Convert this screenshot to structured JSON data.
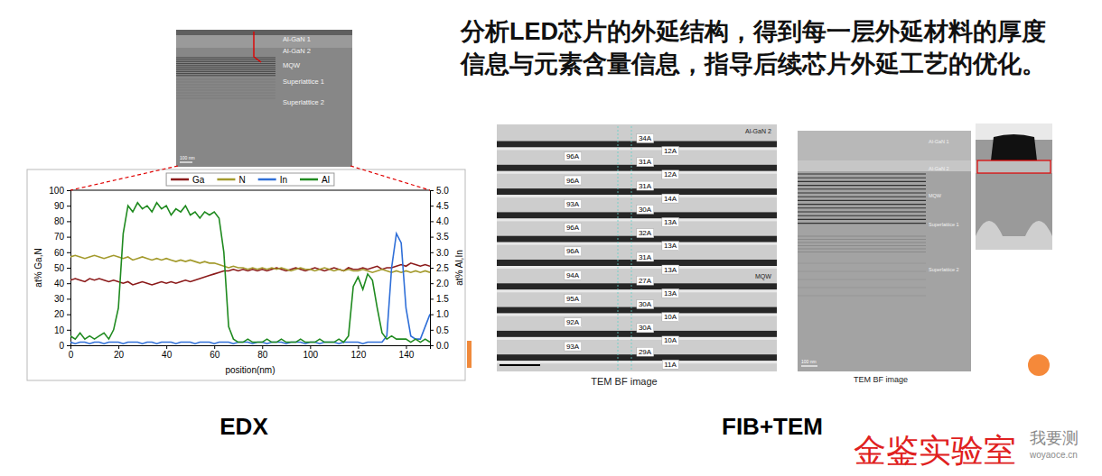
{
  "header": {
    "lines": [
      "分析LED芯片的外延结构，得到每一层外延材料的厚度",
      "信息与元素含量信息，指导后续芯片外延工艺的优化。"
    ]
  },
  "sem_overview": {
    "labels": [
      "Al-GaN 1",
      "Al-GaN 2",
      "MQW",
      "Superlattice 1",
      "Superlattice 2"
    ],
    "scale": "100 nm"
  },
  "chart_data": {
    "type": "line",
    "x": [
      0,
      2,
      4,
      6,
      8,
      10,
      12,
      14,
      16,
      18,
      20,
      22,
      24,
      26,
      28,
      30,
      32,
      34,
      36,
      38,
      40,
      42,
      44,
      46,
      48,
      50,
      52,
      54,
      56,
      58,
      60,
      62,
      64,
      66,
      68,
      70,
      72,
      74,
      76,
      78,
      80,
      82,
      84,
      86,
      88,
      90,
      92,
      94,
      96,
      98,
      100,
      102,
      104,
      106,
      108,
      110,
      112,
      114,
      116,
      118,
      120,
      122,
      124,
      126,
      128,
      130,
      132,
      134,
      136,
      138,
      140,
      142,
      144,
      146,
      148,
      150
    ],
    "series": [
      {
        "name": "Ga",
        "color": "#8b1a1a",
        "values": [
          42,
          43,
          42,
          41,
          43,
          42,
          43,
          42,
          41,
          42,
          41,
          40,
          41,
          39,
          40,
          41,
          40,
          39,
          40,
          41,
          40,
          41,
          40,
          41,
          42,
          41,
          42,
          43,
          44,
          45,
          46,
          47,
          48,
          48,
          49,
          48,
          49,
          48,
          49,
          48,
          49,
          48,
          49,
          50,
          49,
          48,
          49,
          50,
          49,
          48,
          49,
          50,
          49,
          48,
          49,
          50,
          49,
          48,
          50,
          49,
          49,
          50,
          49,
          50,
          51,
          49,
          50,
          50,
          51,
          52,
          51,
          53,
          52,
          51,
          52,
          51
        ]
      },
      {
        "name": "N",
        "color": "#a39a2c",
        "values": [
          57,
          58,
          57,
          56,
          57,
          58,
          57,
          56,
          57,
          58,
          57,
          56,
          57,
          55,
          56,
          57,
          56,
          55,
          56,
          55,
          56,
          55,
          54,
          55,
          54,
          55,
          54,
          53,
          54,
          53,
          53,
          52,
          51,
          50,
          51,
          50,
          50,
          49,
          50,
          49,
          50,
          49,
          50,
          49,
          50,
          49,
          48,
          49,
          50,
          49,
          49,
          48,
          49,
          50,
          49,
          48,
          49,
          48,
          49,
          48,
          48,
          49,
          48,
          47,
          48,
          49,
          48,
          47,
          48,
          47,
          48,
          47,
          48,
          47,
          48,
          47
        ]
      },
      {
        "name": "In",
        "color": "#2f6fd8",
        "axis": "y2",
        "values": [
          0.1,
          0.05,
          0.1,
          0.1,
          0.05,
          0.1,
          0.1,
          0.05,
          0.1,
          0.1,
          0.1,
          0.05,
          0.1,
          0.1,
          0.1,
          0.05,
          0.1,
          0.1,
          0.05,
          0.1,
          0.1,
          0.1,
          0.05,
          0.1,
          0.1,
          0.1,
          0.05,
          0.1,
          0.1,
          0.1,
          0.05,
          0.1,
          0.1,
          0.1,
          0.05,
          0.1,
          0.1,
          0.1,
          0.05,
          0.1,
          0.1,
          0.05,
          0.1,
          0.1,
          0.1,
          0.05,
          0.1,
          0.1,
          0.1,
          0.05,
          0.1,
          0.1,
          0.05,
          0.1,
          0.1,
          0.1,
          0.05,
          0.1,
          0.1,
          0.1,
          0.1,
          0.05,
          0.1,
          0.1,
          0.1,
          0.1,
          0.3,
          2.5,
          3.6,
          3.3,
          1.2,
          0.3,
          0.2,
          0.2,
          0.6,
          1.0
        ]
      },
      {
        "name": "Al",
        "color": "#1f8a1f",
        "axis": "y2",
        "values": [
          0.3,
          0.2,
          0.4,
          0.2,
          0.3,
          0.2,
          0.3,
          0.4,
          0.2,
          0.5,
          1.2,
          3.6,
          4.5,
          4.3,
          4.6,
          4.4,
          4.5,
          4.3,
          4.6,
          4.4,
          4.5,
          4.2,
          4.4,
          4.3,
          4.5,
          4.2,
          4.3,
          4.1,
          4.3,
          4.2,
          4.3,
          4.1,
          3.0,
          0.6,
          0.2,
          0.1,
          0.1,
          0.2,
          0.1,
          0.1,
          0.1,
          0.2,
          0.1,
          0.1,
          0.2,
          0.1,
          0.1,
          0.1,
          0.2,
          0.1,
          0.1,
          0.1,
          0.2,
          0.1,
          0.1,
          0.1,
          0.2,
          0.1,
          0.3,
          1.9,
          2.2,
          1.8,
          2.3,
          2.1,
          1.2,
          0.4,
          0.2,
          0.3,
          0.2,
          0.2,
          0.2,
          0.1,
          0.2,
          0.1,
          0.2,
          0.1
        ]
      }
    ],
    "xlim": [
      0,
      150
    ],
    "xticks": [
      0,
      20,
      40,
      60,
      80,
      100,
      120,
      140
    ],
    "ylim": [
      0,
      100
    ],
    "yticks": [
      0,
      10,
      20,
      30,
      40,
      50,
      60,
      70,
      80,
      90,
      100
    ],
    "y2lim": [
      0,
      5
    ],
    "y2ticks": [
      {
        "value": 0,
        "label": "0.0"
      },
      {
        "value": 0.5,
        "label": "0.5"
      },
      {
        "value": 1,
        "label": "1.0"
      },
      {
        "value": 1.5,
        "label": "1.5"
      },
      {
        "value": 2,
        "label": "2.0"
      },
      {
        "value": 2.5,
        "label": "2.5"
      },
      {
        "value": 3,
        "label": "3.0"
      },
      {
        "value": 3.5,
        "label": "3.5"
      },
      {
        "value": 4,
        "label": "4.0"
      },
      {
        "value": 4.5,
        "label": "4.5"
      },
      {
        "value": 5,
        "label": "5.0"
      }
    ],
    "x_label": "position(nm)",
    "y_label": "at% Ga,N",
    "y2_label": "at% Al,In",
    "legend": "top"
  },
  "tem_mqw": {
    "corner_label": "Al-GaN 2",
    "side_label": "MQW",
    "wells": [
      [
        "34A",
        "12A"
      ],
      [
        "31A",
        "12A"
      ],
      [
        "31A",
        "14A"
      ],
      [
        "30A",
        "13A"
      ],
      [
        "32A",
        "13A"
      ],
      [
        "31A",
        "13A"
      ],
      [
        "27A",
        "13A"
      ],
      [
        "30A",
        "10A"
      ],
      [
        "30A",
        "10A"
      ],
      [
        "29A",
        "11A"
      ]
    ],
    "barriers": [
      "96A",
      "96A",
      "93A",
      "96A",
      "96A",
      "94A",
      "95A",
      "92A",
      "93A"
    ],
    "caption": "TEM BF image"
  },
  "tem_full": {
    "labels": [
      "Al-GaN 1",
      "Al-GaN 2",
      "MQW",
      "Superlattice 1",
      "Superlattice 2"
    ],
    "scale": "100 nm",
    "caption": "TEM BF image"
  },
  "captions": {
    "edx": "EDX",
    "fib_tem": "FIB+TEM"
  },
  "watermark": {
    "brand": "金鉴实验室",
    "site_name": "我要测",
    "site_url": "woyaoce.cn"
  }
}
